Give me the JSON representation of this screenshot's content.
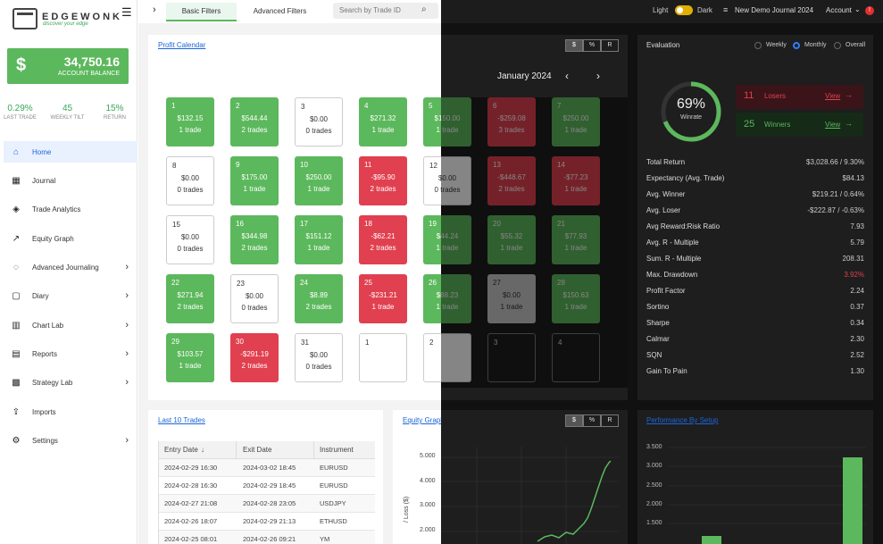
{
  "brand": {
    "name": "EDGEWONK",
    "tagline": "discover your edge"
  },
  "balance": {
    "symbol": "$",
    "amount": "34,750.16",
    "label": "ACCOUNT BALANCE"
  },
  "stats": [
    {
      "value": "0.29%",
      "label": "LAST TRADE"
    },
    {
      "value": "45",
      "label": "WEEKLY TILT"
    },
    {
      "value": "15%",
      "label": "RETURN"
    }
  ],
  "nav": [
    {
      "label": "Home",
      "icon": "home-icon",
      "active": true,
      "chevron": false
    },
    {
      "label": "Journal",
      "icon": "table-icon",
      "chevron": false
    },
    {
      "label": "Trade Analytics",
      "icon": "layers-icon",
      "chevron": false
    },
    {
      "label": "Equity Graph",
      "icon": "line-chart-icon",
      "chevron": false
    },
    {
      "label": "Advanced Journaling",
      "icon": "bulb-icon",
      "chevron": true
    },
    {
      "label": "Diary",
      "icon": "note-icon",
      "chevron": true
    },
    {
      "label": "Chart Lab",
      "icon": "bar-chart-icon",
      "chevron": true
    },
    {
      "label": "Reports",
      "icon": "clipboard-icon",
      "chevron": true
    },
    {
      "label": "Strategy Lab",
      "icon": "grid-icon",
      "chevron": true
    },
    {
      "label": "Imports",
      "icon": "upload-icon",
      "chevron": false
    },
    {
      "label": "Settings",
      "icon": "gear-icon",
      "chevron": true
    }
  ],
  "topbar": {
    "tabs": [
      "Basic Filters",
      "Advanced Filters"
    ],
    "search_placeholder": "Search by Trade ID",
    "light": "Light",
    "dark": "Dark",
    "journal": "New Demo Journal 2024",
    "account": "Account"
  },
  "calendar": {
    "title": "Profit Calendar",
    "month": "January 2024",
    "units": [
      "$",
      "%",
      "R"
    ],
    "days": [
      {
        "d": "1",
        "amt": "$132.15",
        "t": "1 trade",
        "c": "g"
      },
      {
        "d": "2",
        "amt": "$544.44",
        "t": "2 trades",
        "c": "g"
      },
      {
        "d": "3",
        "amt": "$0.00",
        "t": "0 trades",
        "c": "w"
      },
      {
        "d": "4",
        "amt": "$271.32",
        "t": "1 trade",
        "c": "g"
      },
      {
        "d": "5",
        "amt": "$150.00",
        "t": "1 trade",
        "c": "g"
      },
      {
        "d": "6",
        "amt": "-$259.08",
        "t": "3 trades",
        "c": "r"
      },
      {
        "d": "7",
        "amt": "$250.00",
        "t": "1 trade",
        "c": "g"
      },
      {
        "d": "8",
        "amt": "$0.00",
        "t": "0 trades",
        "c": "w"
      },
      {
        "d": "9",
        "amt": "$175.00",
        "t": "1 trade",
        "c": "g"
      },
      {
        "d": "10",
        "amt": "$250.00",
        "t": "1 trade",
        "c": "g"
      },
      {
        "d": "11",
        "amt": "-$95.90",
        "t": "2 trades",
        "c": "r"
      },
      {
        "d": "12",
        "amt": "$0.00",
        "t": "0 trades",
        "c": "w"
      },
      {
        "d": "13",
        "amt": "-$448.67",
        "t": "2 trades",
        "c": "r"
      },
      {
        "d": "14",
        "amt": "-$77.23",
        "t": "1 trade",
        "c": "r"
      },
      {
        "d": "15",
        "amt": "$0.00",
        "t": "0 trades",
        "c": "w"
      },
      {
        "d": "16",
        "amt": "$344.98",
        "t": "2 trades",
        "c": "g"
      },
      {
        "d": "17",
        "amt": "$151.12",
        "t": "1 trade",
        "c": "g"
      },
      {
        "d": "18",
        "amt": "-$62.21",
        "t": "2 trades",
        "c": "r"
      },
      {
        "d": "19",
        "amt": "$44.24",
        "t": "1 trade",
        "c": "g"
      },
      {
        "d": "20",
        "amt": "$55.32",
        "t": "1 trade",
        "c": "g"
      },
      {
        "d": "21",
        "amt": "$77.93",
        "t": "1 trade",
        "c": "g"
      },
      {
        "d": "22",
        "amt": "$271.94",
        "t": "2 trades",
        "c": "g"
      },
      {
        "d": "23",
        "amt": "$0.00",
        "t": "0 trades",
        "c": "w"
      },
      {
        "d": "24",
        "amt": "$8.89",
        "t": "2 trades",
        "c": "g"
      },
      {
        "d": "25",
        "amt": "-$231.21",
        "t": "1 trade",
        "c": "r"
      },
      {
        "d": "26",
        "amt": "$88.23",
        "t": "1 trade",
        "c": "g"
      },
      {
        "d": "27",
        "amt": "$0.00",
        "t": "1 trade",
        "c": "gray"
      },
      {
        "d": "28",
        "amt": "$150.63",
        "t": "1 trade",
        "c": "g"
      },
      {
        "d": "29",
        "amt": "$103.57",
        "t": "1 trade",
        "c": "g"
      },
      {
        "d": "30",
        "amt": "-$291.19",
        "t": "2 trades",
        "c": "r"
      },
      {
        "d": "31",
        "amt": "$0.00",
        "t": "0 trades",
        "c": "w"
      },
      {
        "d": "1",
        "amt": "",
        "t": "",
        "c": "w"
      },
      {
        "d": "2",
        "amt": "",
        "t": "",
        "c": "w"
      },
      {
        "d": "3",
        "amt": "",
        "t": "",
        "c": "dk"
      },
      {
        "d": "4",
        "amt": "",
        "t": "",
        "c": "dk"
      }
    ]
  },
  "evaluation": {
    "title": "Evaluation",
    "periods": [
      "Weekly",
      "Monthly",
      "Overall"
    ],
    "winrate": {
      "value": "69%",
      "label": "Winrate",
      "fraction": 0.69
    },
    "losers": {
      "count": "11",
      "label": "Losers",
      "link": "View"
    },
    "winners": {
      "count": "25",
      "label": "Winners",
      "link": "View"
    },
    "rows": [
      {
        "k": "Total Return",
        "v": "$3,028.66 / 9.30%"
      },
      {
        "k": "Expectancy (Avg. Trade)",
        "v": "$84.13"
      },
      {
        "k": "Avg. Winner",
        "v": "$219.21 / 0.64%"
      },
      {
        "k": "Avg. Loser",
        "v": "-$222.87 / -0.63%"
      },
      {
        "k": "Avg Reward:Risk Ratio",
        "v": "7.93"
      },
      {
        "k": "Avg. R - Multiple",
        "v": "5.79"
      },
      {
        "k": "Sum. R - Multiple",
        "v": "208.31"
      },
      {
        "k": "Max. Drawdown",
        "v": "3.92%",
        "red": true
      },
      {
        "k": "Profit Factor",
        "v": "2.24"
      },
      {
        "k": "Sortino",
        "v": "0.37"
      },
      {
        "k": "Sharpe",
        "v": "0.34"
      },
      {
        "k": "Calmar",
        "v": "2.30"
      },
      {
        "k": "SQN",
        "v": "2.52"
      },
      {
        "k": "Gain To Pain",
        "v": "1.30"
      }
    ]
  },
  "last10": {
    "title": "Last 10 Trades",
    "headers": [
      "Entry Date",
      "Exit Date",
      "Instrument"
    ],
    "rows": [
      [
        "2024-02-29 16:30",
        "2024-03-02 18:45",
        "EURUSD"
      ],
      [
        "2024-02-28 16:30",
        "2024-02-29 18:45",
        "EURUSD"
      ],
      [
        "2024-02-27 21:08",
        "2024-02-28 23:05",
        "USDJPY"
      ],
      [
        "2024-02-26 18:07",
        "2024-02-29 21:13",
        "ETHUSD"
      ],
      [
        "2024-02-25 08:01",
        "2024-02-26 09:21",
        "YM"
      ]
    ]
  },
  "equity": {
    "title": "Equity Graph",
    "units": [
      "$",
      "%",
      "R"
    ],
    "ylabel": "/ Loss ($)",
    "ticks": [
      "5.000",
      "4.000",
      "3.000",
      "2.000"
    ]
  },
  "setup": {
    "title": "Performance By Setup",
    "ticks": [
      "3.500",
      "3.000",
      "2.500",
      "2.000",
      "1.500"
    ]
  },
  "colors": {
    "green": "#5cb85c",
    "red": "#e0404f",
    "blue": "#1a66d9",
    "dark": "#1e1e1e"
  }
}
